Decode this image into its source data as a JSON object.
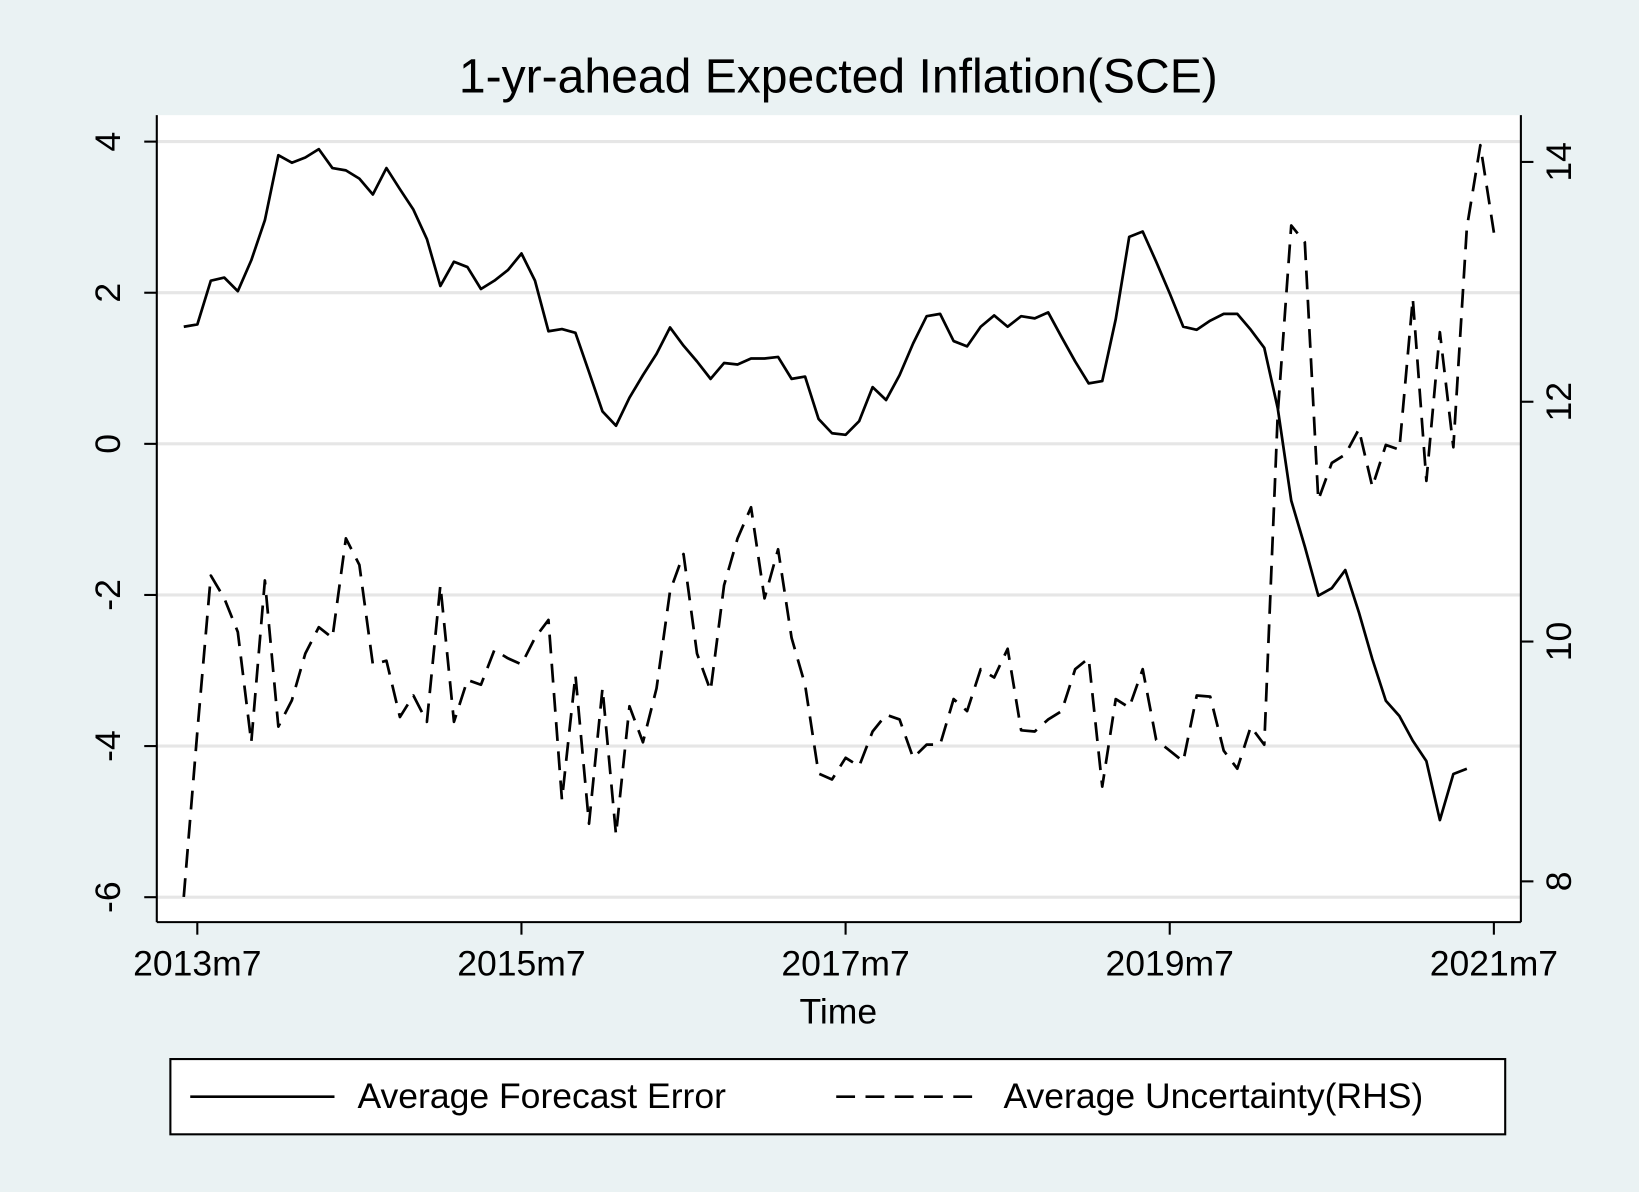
{
  "chart_data": {
    "type": "line",
    "title": "1-yr-ahead Expected Inflation(SCE)",
    "x_label": "Time",
    "x": [
      "2013m6",
      "2013m7",
      "2013m8",
      "2013m9",
      "2013m10",
      "2013m11",
      "2013m12",
      "2014m1",
      "2014m2",
      "2014m3",
      "2014m4",
      "2014m5",
      "2014m6",
      "2014m7",
      "2014m8",
      "2014m9",
      "2014m10",
      "2014m11",
      "2014m12",
      "2015m1",
      "2015m2",
      "2015m3",
      "2015m4",
      "2015m5",
      "2015m6",
      "2015m7",
      "2015m8",
      "2015m9",
      "2015m10",
      "2015m11",
      "2015m12",
      "2016m1",
      "2016m2",
      "2016m3",
      "2016m4",
      "2016m5",
      "2016m6",
      "2016m7",
      "2016m8",
      "2016m9",
      "2016m10",
      "2016m11",
      "2016m12",
      "2017m1",
      "2017m2",
      "2017m3",
      "2017m4",
      "2017m5",
      "2017m6",
      "2017m7",
      "2017m8",
      "2017m9",
      "2017m10",
      "2017m11",
      "2017m12",
      "2018m1",
      "2018m2",
      "2018m3",
      "2018m4",
      "2018m5",
      "2018m6",
      "2018m7",
      "2018m8",
      "2018m9",
      "2018m10",
      "2018m11",
      "2018m12",
      "2019m1",
      "2019m2",
      "2019m3",
      "2019m4",
      "2019m5",
      "2019m6",
      "2019m7",
      "2019m8",
      "2019m9",
      "2019m10",
      "2019m11",
      "2019m12",
      "2020m1",
      "2020m2",
      "2020m3",
      "2020m4",
      "2020m5",
      "2020m6",
      "2020m7",
      "2020m8",
      "2020m9",
      "2020m10",
      "2020m11",
      "2020m12",
      "2021m1",
      "2021m2",
      "2021m3",
      "2021m4",
      "2021m5",
      "2021m6",
      "2021m7"
    ],
    "xlim": [
      "2013m4",
      "2021m9"
    ],
    "xticks": [
      "2013m7",
      "2015m7",
      "2017m7",
      "2019m7",
      "2021m7"
    ],
    "ylim": [
      -6.33,
      4.35
    ],
    "yticks": [
      -6,
      -4,
      -2,
      0,
      2,
      4
    ],
    "y2lim": [
      7.66,
      14.39
    ],
    "y2ticks": [
      8,
      10,
      12,
      14
    ],
    "grid": true,
    "series": [
      {
        "name": "Average Forecast Error",
        "color": "#000000",
        "dash": false,
        "values": [
          1.55,
          1.58,
          2.16,
          2.2,
          2.02,
          2.43,
          2.96,
          3.82,
          3.72,
          3.79,
          3.9,
          3.65,
          3.62,
          3.51,
          3.3,
          3.65,
          3.37,
          3.1,
          2.71,
          2.09,
          2.41,
          2.34,
          2.05,
          2.16,
          2.3,
          2.52,
          2.16,
          1.49,
          1.52,
          1.47,
          0.95,
          0.43,
          0.24,
          0.61,
          0.91,
          1.19,
          1.54,
          1.3,
          1.09,
          0.86,
          1.07,
          1.05,
          1.13,
          1.13,
          1.15,
          0.86,
          0.89,
          0.33,
          0.14,
          0.12,
          0.3,
          0.75,
          0.58,
          0.91,
          1.33,
          1.69,
          1.72,
          1.36,
          1.29,
          1.55,
          1.7,
          1.55,
          1.69,
          1.66,
          1.74,
          1.41,
          1.09,
          0.8,
          0.83,
          1.65,
          2.74,
          2.81,
          2.41,
          1.99,
          1.55,
          1.51,
          1.63,
          1.72,
          1.72,
          1.51,
          1.27,
          0.47,
          -0.75,
          -1.36,
          -2.01,
          -1.91,
          -1.67,
          -2.23,
          -2.85,
          -3.4,
          -3.6,
          -3.93,
          -4.2,
          -4.98,
          -4.37,
          -4.3,
          null,
          null
        ]
      },
      {
        "name": "Average Uncertainty(RHS)",
        "color": "#000000",
        "dash": true,
        "axis": "y2",
        "values": [
          7.87,
          9.25,
          10.55,
          10.36,
          10.08,
          9.16,
          10.51,
          9.29,
          9.51,
          9.9,
          10.12,
          10.03,
          10.86,
          10.64,
          9.81,
          9.84,
          9.37,
          9.55,
          9.33,
          10.47,
          9.33,
          9.68,
          9.64,
          9.93,
          9.86,
          9.81,
          10.03,
          10.18,
          8.68,
          9.72,
          8.48,
          9.61,
          8.39,
          9.46,
          9.16,
          9.61,
          10.42,
          10.73,
          9.9,
          9.59,
          10.47,
          10.86,
          11.12,
          10.36,
          10.77,
          10.03,
          9.64,
          8.9,
          8.85,
          9.03,
          8.96,
          9.25,
          9.39,
          9.35,
          9.03,
          9.14,
          9.14,
          9.52,
          9.42,
          9.77,
          9.7,
          9.94,
          9.26,
          9.25,
          9.35,
          9.42,
          9.77,
          9.86,
          8.79,
          9.52,
          9.45,
          9.77,
          9.18,
          9.09,
          9.0,
          9.55,
          9.54,
          9.09,
          8.94,
          9.29,
          9.14,
          11.9,
          13.47,
          13.33,
          11.18,
          11.49,
          11.56,
          11.77,
          11.29,
          11.64,
          11.6,
          12.86,
          11.34,
          12.58,
          11.62,
          13.45,
          14.14,
          13.41
        ]
      }
    ]
  }
}
